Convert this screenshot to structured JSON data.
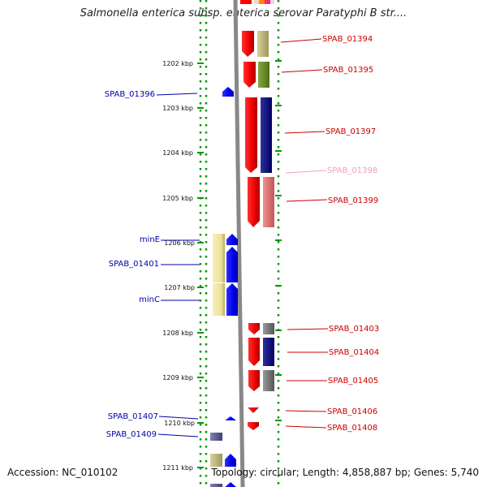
{
  "title": "Salmonella enterica subsp. enterica serovar Paratyphi B str....",
  "footer": {
    "accession": "Accession: NC_010102",
    "info": "Topology: circular; Length: 4,858,887 bp; Genes: 5,740"
  },
  "ticks": [
    "1202 kbp",
    "1203 kbp",
    "1204 kbp",
    "1205 kbp",
    "1206 kbp",
    "1207 kbp",
    "1208 kbp",
    "1209 kbp",
    "1210 kbp",
    "1211 kbp"
  ],
  "genes_right": [
    {
      "label": "SPAB_01394",
      "color": "#cc0000"
    },
    {
      "label": "SPAB_01395",
      "color": "#cc0000"
    },
    {
      "label": "SPAB_01397",
      "color": "#cc0000"
    },
    {
      "label": "SPAB_01398",
      "color": "#f0a0c0"
    },
    {
      "label": "SPAB_01399",
      "color": "#cc0000"
    },
    {
      "label": "SPAB_01403",
      "color": "#cc0000"
    },
    {
      "label": "SPAB_01404",
      "color": "#cc0000"
    },
    {
      "label": "SPAB_01405",
      "color": "#cc0000"
    },
    {
      "label": "SPAB_01406",
      "color": "#cc0000"
    },
    {
      "label": "SPAB_01408",
      "color": "#cc0000"
    }
  ],
  "genes_left": [
    {
      "label": "SPAB_01396",
      "color": "#0000aa"
    },
    {
      "label": "minE",
      "color": "#0000aa"
    },
    {
      "label": "SPAB_01401",
      "color": "#0000aa"
    },
    {
      "label": "minC",
      "color": "#0000aa"
    },
    {
      "label": "SPAB_01407",
      "color": "#0000aa"
    },
    {
      "label": "SPAB_01409",
      "color": "#0000aa"
    }
  ],
  "colors": {
    "forward_strand": "#ff0000",
    "reverse_strand": "#0000ff",
    "backbone": "#888888",
    "dotted_ring": "#009900"
  }
}
